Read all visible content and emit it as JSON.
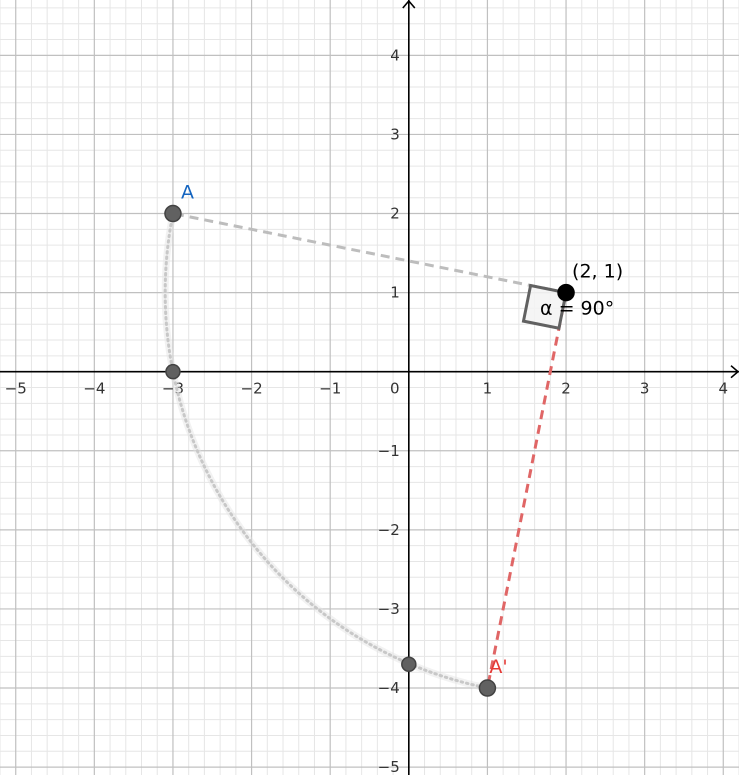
{
  "graph": {
    "x_range": [
      -5.2,
      4.2
    ],
    "y_range": [
      -5.1,
      4.7
    ],
    "grid": "on",
    "x_ticks": [
      "−5",
      "−4",
      "−3",
      "−2",
      "−1",
      "0",
      "1",
      "2",
      "3",
      "4"
    ],
    "y_ticks": [
      "4",
      "3",
      "2",
      "1",
      "−1",
      "−2",
      "−3",
      "−4",
      "−5"
    ],
    "x_tick_values": [
      -5,
      -4,
      -3,
      -2,
      -1,
      0,
      1,
      2,
      3,
      4
    ],
    "y_tick_values": [
      4,
      3,
      2,
      1,
      -1,
      -2,
      -3,
      -4,
      -5
    ],
    "axis_color": "#000000",
    "major_grid_color": "#c0c0c0",
    "minor_grid_color": "#e6e6e6"
  },
  "points": {
    "A": {
      "label": "A",
      "x": -3,
      "y": 2,
      "color": "#1565c0",
      "point_color": "#616161"
    },
    "center": {
      "label": "(2, 1)",
      "x": 2,
      "y": 1,
      "point_color": "#000000"
    },
    "A_prime": {
      "label": "A'",
      "x": 1,
      "y": -4,
      "color": "#e53935",
      "point_color": "#616161"
    }
  },
  "helper_points": [
    {
      "x": -3,
      "y": 0
    },
    {
      "x": 0,
      "y": -3.7
    }
  ],
  "segments": {
    "to_A": {
      "color": "#bdbdbd",
      "style": "dashed"
    },
    "to_A_prime": {
      "color": "#e06666",
      "style": "dashed"
    }
  },
  "angle": {
    "label": "α = 90°",
    "degrees": 90,
    "marker_color": "#616161"
  },
  "arc": {
    "color": "#c8c8c8",
    "style": "dotted"
  }
}
